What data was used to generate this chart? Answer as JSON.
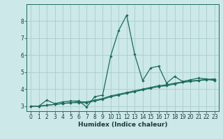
{
  "title": "",
  "xlabel": "Humidex (Indice chaleur)",
  "background_color": "#cce8e8",
  "grid_color": "#aacccc",
  "line_color": "#1a6b5a",
  "xlim": [
    -0.5,
    23.5
  ],
  "ylim": [
    2.7,
    9.0
  ],
  "xticks": [
    0,
    1,
    2,
    3,
    4,
    5,
    6,
    7,
    8,
    9,
    10,
    11,
    12,
    13,
    14,
    15,
    16,
    17,
    18,
    19,
    20,
    21,
    22,
    23
  ],
  "yticks": [
    3,
    4,
    5,
    6,
    7,
    8
  ],
  "series1_x": [
    0,
    1,
    2,
    3,
    4,
    5,
    6,
    7,
    8,
    9,
    10,
    11,
    12,
    13,
    14,
    15,
    16,
    17,
    18,
    19,
    20,
    21,
    22,
    23
  ],
  "series1_y": [
    3.0,
    3.0,
    3.35,
    3.15,
    3.25,
    3.3,
    3.3,
    2.95,
    3.55,
    3.65,
    5.95,
    7.45,
    8.35,
    6.05,
    4.5,
    5.25,
    5.35,
    4.35,
    4.75,
    4.45,
    4.55,
    4.65,
    4.6,
    4.5
  ],
  "series2_x": [
    0,
    1,
    2,
    3,
    4,
    5,
    6,
    7,
    8,
    9,
    10,
    11,
    12,
    13,
    14,
    15,
    16,
    17,
    18,
    19,
    20,
    21,
    22,
    23
  ],
  "series2_y": [
    3.0,
    3.0,
    3.05,
    3.1,
    3.15,
    3.2,
    3.2,
    3.2,
    3.3,
    3.4,
    3.55,
    3.65,
    3.75,
    3.85,
    3.95,
    4.05,
    4.15,
    4.2,
    4.3,
    4.4,
    4.45,
    4.5,
    4.55,
    4.55
  ],
  "series3_x": [
    0,
    1,
    2,
    3,
    4,
    5,
    6,
    7,
    8,
    9,
    10,
    11,
    12,
    13,
    14,
    15,
    16,
    17,
    18,
    19,
    20,
    21,
    22,
    23
  ],
  "series3_y": [
    3.0,
    3.0,
    3.05,
    3.1,
    3.15,
    3.2,
    3.25,
    3.25,
    3.35,
    3.45,
    3.6,
    3.7,
    3.8,
    3.9,
    4.0,
    4.1,
    4.2,
    4.25,
    4.35,
    4.42,
    4.48,
    4.52,
    4.57,
    4.6
  ],
  "xlabel_fontsize": 6.5,
  "tick_fontsize": 5.5,
  "line_width": 0.9,
  "marker_size": 1.8
}
